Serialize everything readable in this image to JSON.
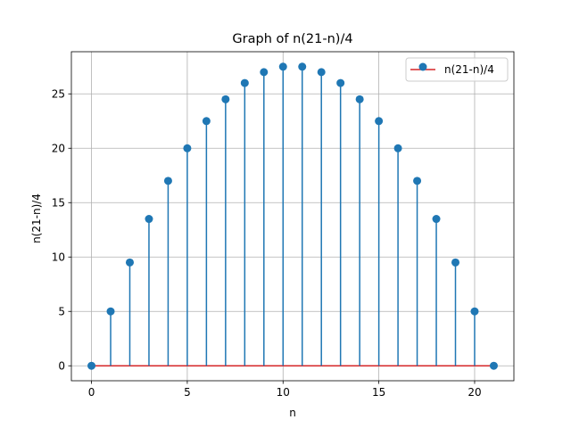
{
  "chart_data": {
    "type": "stem",
    "title": "Graph of n(21-n)/4",
    "xlabel": "n",
    "ylabel": "n(21-n)/4",
    "x": [
      0,
      1,
      2,
      3,
      4,
      5,
      6,
      7,
      8,
      9,
      10,
      11,
      12,
      13,
      14,
      15,
      16,
      17,
      18,
      19,
      20,
      21
    ],
    "series": [
      {
        "name": "n(21-n)/4",
        "values": [
          0,
          5,
          9.5,
          13.5,
          17,
          20,
          22.5,
          24.5,
          26,
          27,
          27.5,
          27.5,
          27,
          26,
          24.5,
          22.5,
          20,
          17,
          13.5,
          9.5,
          5,
          0
        ]
      }
    ],
    "xlim": [
      -1.05,
      22.05
    ],
    "ylim": [
      -1.375,
      28.875
    ],
    "xticks": [
      0,
      5,
      10,
      15,
      20
    ],
    "yticks": [
      0,
      5,
      10,
      15,
      20,
      25
    ],
    "grid": true,
    "legend_position": "top-right",
    "colors": {
      "stem": "#1f77b4",
      "baseline": "#d62728",
      "grid": "#b0b0b0",
      "axes": "#000000"
    }
  }
}
